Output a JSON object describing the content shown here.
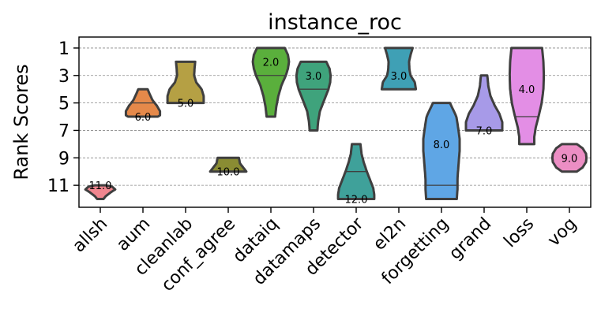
{
  "chart_data": {
    "type": "violin",
    "title": "instance_roc",
    "xlabel": "",
    "ylabel": "Rank Scores",
    "ylim": [
      12.6,
      0.2
    ],
    "y_inverted": true,
    "yticks": [
      1,
      3,
      5,
      7,
      9,
      11
    ],
    "grid": "horizontal dashed",
    "categories": [
      "allsh",
      "aum",
      "cleanlab",
      "conf_agree",
      "dataiq",
      "datamaps",
      "detector",
      "el2n",
      "forgetting",
      "grand",
      "loss",
      "vog"
    ],
    "series": [
      {
        "name": "allsh",
        "color": "#f0868f",
        "min": 11,
        "max": 12,
        "median": 11.0,
        "label": "11.0",
        "quartiles": [],
        "profile": [
          [
            11,
            0.25
          ],
          [
            11.1,
            0.55
          ],
          [
            11.3,
            0.7
          ],
          [
            11.5,
            0.5
          ],
          [
            11.8,
            0.25
          ],
          [
            12,
            0.15
          ]
        ]
      },
      {
        "name": "aum",
        "color": "#e5894a",
        "min": 4,
        "max": 6,
        "median": 6.0,
        "label": "6.0",
        "quartiles": [
          5
        ],
        "profile": [
          [
            4,
            0.22
          ],
          [
            4.3,
            0.3
          ],
          [
            4.8,
            0.45
          ],
          [
            5.2,
            0.65
          ],
          [
            5.6,
            0.8
          ],
          [
            5.9,
            0.8
          ],
          [
            6,
            0.7
          ]
        ]
      },
      {
        "name": "cleanlab",
        "color": "#b5a044",
        "min": 2,
        "max": 5,
        "median": 5.0,
        "label": "5.0",
        "quartiles": [],
        "profile": [
          [
            2,
            0.45
          ],
          [
            2.5,
            0.42
          ],
          [
            3,
            0.4
          ],
          [
            3.5,
            0.5
          ],
          [
            4,
            0.75
          ],
          [
            4.5,
            0.85
          ],
          [
            5,
            0.85
          ]
        ]
      },
      {
        "name": "conf_agree",
        "color": "#8a8c33",
        "min": 9,
        "max": 10,
        "median": 10.0,
        "label": "10.0",
        "quartiles": [],
        "profile": [
          [
            9,
            0.5
          ],
          [
            9.4,
            0.55
          ],
          [
            9.7,
            0.7
          ],
          [
            10,
            0.85
          ]
        ]
      },
      {
        "name": "dataiq",
        "color": "#5aaf3c",
        "min": 1,
        "max": 6,
        "median": 2.0,
        "label": "2.0",
        "quartiles": [
          3
        ],
        "profile": [
          [
            1,
            0.65
          ],
          [
            1.5,
            0.8
          ],
          [
            2,
            0.85
          ],
          [
            2.5,
            0.8
          ],
          [
            3,
            0.7
          ],
          [
            3.7,
            0.5
          ],
          [
            4.5,
            0.35
          ],
          [
            5.3,
            0.25
          ],
          [
            6,
            0.2
          ]
        ]
      },
      {
        "name": "datamaps",
        "color": "#3fa37c",
        "min": 2,
        "max": 7,
        "median": 3.0,
        "label": "3.0",
        "quartiles": [
          4
        ],
        "profile": [
          [
            2,
            0.6
          ],
          [
            2.5,
            0.75
          ],
          [
            3,
            0.8
          ],
          [
            3.5,
            0.78
          ],
          [
            4,
            0.7
          ],
          [
            4.8,
            0.5
          ],
          [
            5.6,
            0.3
          ],
          [
            6.3,
            0.22
          ],
          [
            7,
            0.18
          ]
        ]
      },
      {
        "name": "detector",
        "color": "#3fa19a",
        "min": 8,
        "max": 12,
        "median": 12.0,
        "label": "12.0",
        "quartiles": [
          10
        ],
        "profile": [
          [
            8,
            0.2
          ],
          [
            8.7,
            0.25
          ],
          [
            9.3,
            0.35
          ],
          [
            10,
            0.5
          ],
          [
            10.6,
            0.65
          ],
          [
            11.2,
            0.8
          ],
          [
            11.7,
            0.85
          ],
          [
            12,
            0.85
          ]
        ]
      },
      {
        "name": "el2n",
        "color": "#3fa0b5",
        "min": 1,
        "max": 4,
        "median": 3.0,
        "label": "3.0",
        "quartiles": [],
        "profile": [
          [
            1,
            0.65
          ],
          [
            1.5,
            0.55
          ],
          [
            2,
            0.48
          ],
          [
            2.6,
            0.5
          ],
          [
            3,
            0.55
          ],
          [
            3.5,
            0.75
          ],
          [
            4,
            0.8
          ]
        ]
      },
      {
        "name": "forgetting",
        "color": "#5fa6e5",
        "min": 5,
        "max": 12,
        "median": 8.0,
        "label": "8.0",
        "quartiles": [
          11
        ],
        "profile": [
          [
            5,
            0.4
          ],
          [
            5.5,
            0.55
          ],
          [
            6,
            0.7
          ],
          [
            6.8,
            0.78
          ],
          [
            7.6,
            0.85
          ],
          [
            8.5,
            0.85
          ],
          [
            9.5,
            0.8
          ],
          [
            10.5,
            0.75
          ],
          [
            11.3,
            0.75
          ],
          [
            12,
            0.72
          ]
        ]
      },
      {
        "name": "grand",
        "color": "#a79ae8",
        "min": 3,
        "max": 7,
        "median": 7.0,
        "label": "7.0",
        "quartiles": [],
        "profile": [
          [
            3,
            0.15
          ],
          [
            3.8,
            0.2
          ],
          [
            4.5,
            0.3
          ],
          [
            5.2,
            0.5
          ],
          [
            5.8,
            0.72
          ],
          [
            6.4,
            0.85
          ],
          [
            7,
            0.85
          ]
        ]
      },
      {
        "name": "loss",
        "color": "#e38ee5",
        "min": 1,
        "max": 8,
        "median": 4.0,
        "label": "4.0",
        "quartiles": [
          6
        ],
        "profile": [
          [
            1,
            0.72
          ],
          [
            2,
            0.78
          ],
          [
            3,
            0.8
          ],
          [
            4,
            0.78
          ],
          [
            5,
            0.7
          ],
          [
            6,
            0.55
          ],
          [
            6.8,
            0.42
          ],
          [
            7.5,
            0.35
          ],
          [
            8,
            0.35
          ]
        ]
      },
      {
        "name": "vog",
        "color": "#ec8ec4",
        "min": 8,
        "max": 10,
        "median": 9.0,
        "label": "9.0",
        "quartiles": [],
        "profile": [
          [
            8,
            0.35
          ],
          [
            8.3,
            0.62
          ],
          [
            8.7,
            0.78
          ],
          [
            9,
            0.8
          ],
          [
            9.3,
            0.78
          ],
          [
            9.7,
            0.62
          ],
          [
            10,
            0.35
          ]
        ]
      }
    ]
  }
}
